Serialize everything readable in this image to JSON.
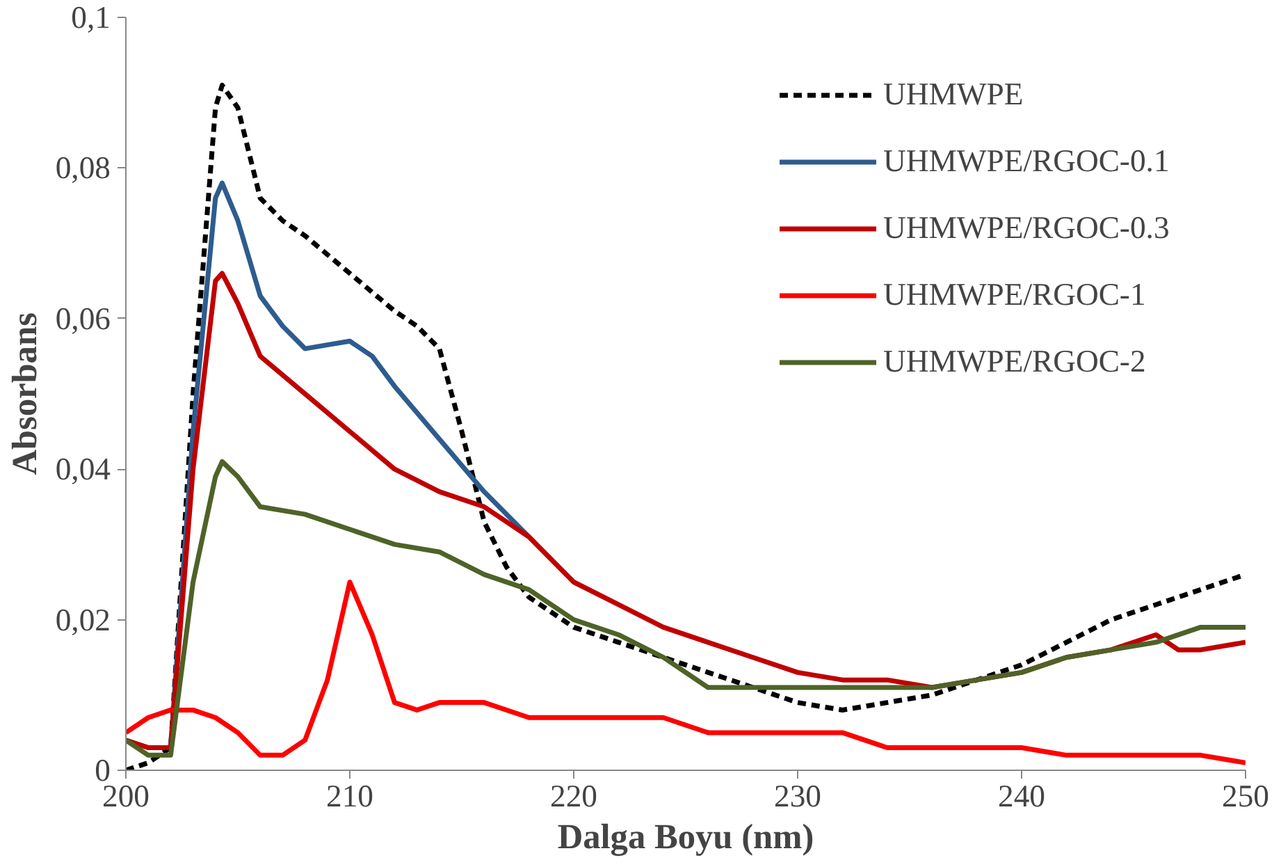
{
  "chart_data": {
    "type": "line",
    "xlabel": "Dalga Boyu (nm)",
    "ylabel": "Absorbans",
    "xlim": [
      200,
      250
    ],
    "ylim": [
      0,
      0.1
    ],
    "xticks": [
      200,
      210,
      220,
      230,
      240,
      250
    ],
    "yticks": [
      {
        "value": 0,
        "label": "0"
      },
      {
        "value": 0.02,
        "label": "0,02"
      },
      {
        "value": 0.04,
        "label": "0,04"
      },
      {
        "value": 0.06,
        "label": "0,06"
      },
      {
        "value": 0.08,
        "label": "0,08"
      },
      {
        "value": 0.1,
        "label": "0,1"
      }
    ],
    "grid": false,
    "legend": "top right",
    "marker": "none",
    "series": [
      {
        "name": "UHMWPE",
        "color": "#000000",
        "line_style": "dashed",
        "x": [
          200,
          201,
          202,
          203,
          204,
          204.3,
          205,
          206,
          207,
          208,
          210,
          212,
          213,
          214,
          215,
          216,
          217,
          218,
          220,
          222,
          224,
          226,
          228,
          230,
          232,
          234,
          236,
          238,
          240,
          242,
          244,
          246,
          248,
          250
        ],
        "values": [
          0,
          0.001,
          0.003,
          0.05,
          0.088,
          0.091,
          0.088,
          0.076,
          0.073,
          0.071,
          0.066,
          0.061,
          0.059,
          0.056,
          0.045,
          0.033,
          0.027,
          0.023,
          0.019,
          0.017,
          0.015,
          0.013,
          0.011,
          0.009,
          0.008,
          0.009,
          0.01,
          0.012,
          0.014,
          0.017,
          0.02,
          0.022,
          0.024,
          0.026
        ]
      },
      {
        "name": "UHMWPE/RGOC-0.1",
        "color": "#2e5c8f",
        "x": [
          200,
          201,
          202,
          203,
          204,
          204.3,
          205,
          206,
          207,
          208,
          209,
          210,
          211,
          212,
          214,
          216,
          218
        ],
        "values": [
          0.004,
          0.003,
          0.003,
          0.045,
          0.076,
          0.078,
          0.073,
          0.063,
          0.059,
          0.056,
          0.0565,
          0.057,
          0.055,
          0.051,
          0.044,
          0.037,
          0.031
        ]
      },
      {
        "name": "UHMWPE/RGOC-0.3",
        "color": "#c00000",
        "x": [
          200,
          201,
          202,
          203,
          204,
          204.3,
          205,
          206,
          208,
          210,
          212,
          214,
          216,
          218,
          220,
          222,
          224,
          226,
          228,
          230,
          232,
          234,
          236,
          238,
          240,
          242,
          244,
          246,
          247,
          248,
          250
        ],
        "values": [
          0.004,
          0.003,
          0.003,
          0.04,
          0.065,
          0.066,
          0.062,
          0.055,
          0.05,
          0.045,
          0.04,
          0.037,
          0.035,
          0.031,
          0.025,
          0.022,
          0.019,
          0.017,
          0.015,
          0.013,
          0.012,
          0.012,
          0.011,
          0.012,
          0.013,
          0.015,
          0.016,
          0.018,
          0.016,
          0.016,
          0.017
        ]
      },
      {
        "name": "UHMWPE/RGOC-1",
        "color": "#ff0000",
        "x": [
          200,
          201,
          202,
          203,
          204,
          205,
          206,
          207,
          208,
          209,
          210,
          211,
          212,
          213,
          214,
          216,
          218,
          220,
          222,
          224,
          226,
          228,
          230,
          232,
          234,
          236,
          238,
          240,
          242,
          244,
          246,
          248,
          250
        ],
        "values": [
          0.005,
          0.007,
          0.008,
          0.008,
          0.007,
          0.005,
          0.002,
          0.002,
          0.004,
          0.012,
          0.025,
          0.018,
          0.009,
          0.008,
          0.009,
          0.009,
          0.007,
          0.007,
          0.007,
          0.007,
          0.005,
          0.005,
          0.005,
          0.005,
          0.003,
          0.003,
          0.003,
          0.003,
          0.002,
          0.002,
          0.002,
          0.002,
          0.001
        ]
      },
      {
        "name": "UHMWPE/RGOC-2",
        "color": "#4f6228",
        "x": [
          200,
          201,
          202,
          203,
          204,
          204.3,
          205,
          206,
          208,
          210,
          212,
          214,
          216,
          218,
          220,
          222,
          224,
          226,
          228,
          230,
          232,
          234,
          236,
          238,
          240,
          242,
          244,
          246,
          248,
          250
        ],
        "values": [
          0.004,
          0.002,
          0.002,
          0.025,
          0.039,
          0.041,
          0.039,
          0.035,
          0.034,
          0.032,
          0.03,
          0.029,
          0.026,
          0.024,
          0.02,
          0.018,
          0.015,
          0.011,
          0.011,
          0.011,
          0.011,
          0.011,
          0.011,
          0.012,
          0.013,
          0.015,
          0.016,
          0.017,
          0.019,
          0.019
        ]
      }
    ]
  }
}
